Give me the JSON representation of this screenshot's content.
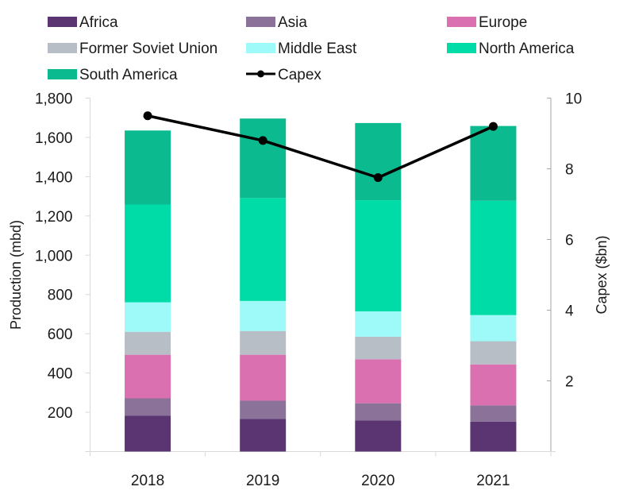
{
  "chart_data": {
    "type": "bar",
    "stacked": true,
    "title": "",
    "xlabel": "",
    "ylabel": "Production (mbd)",
    "y2label": "Capex ($bn)",
    "categories": [
      "2018",
      "2019",
      "2020",
      "2021"
    ],
    "ylim": [
      0,
      1800
    ],
    "yticks": [
      200,
      400,
      600,
      800,
      1000,
      1200,
      1400,
      1600,
      1800
    ],
    "ytick_labels": [
      "200",
      "400",
      "600",
      "800",
      "1,000",
      "1,200",
      "1,400",
      "1,600",
      "1,800"
    ],
    "y2lim": [
      0,
      10
    ],
    "y2ticks": [
      2,
      4,
      6,
      8,
      10
    ],
    "y2tick_labels": [
      "2",
      "4",
      "6",
      "8",
      "10"
    ],
    "grid": false,
    "legend_position": "top",
    "series": [
      {
        "name": "Africa",
        "color": "#5b3472",
        "values": [
          182,
          167,
          158,
          152
        ]
      },
      {
        "name": "Asia",
        "color": "#8b7299",
        "values": [
          89,
          92,
          88,
          83
        ]
      },
      {
        "name": "Europe",
        "color": "#da70b0",
        "values": [
          222,
          234,
          224,
          209
        ]
      },
      {
        "name": "Former Soviet Union",
        "color": "#b8bec6",
        "values": [
          117,
          121,
          115,
          118
        ]
      },
      {
        "name": "Middle East",
        "color": "#9efaf9",
        "values": [
          150,
          153,
          129,
          133
        ]
      },
      {
        "name": "North America",
        "color": "#00dca8",
        "values": [
          498,
          524,
          566,
          582
        ]
      },
      {
        "name": "South America",
        "color": "#0bba8f",
        "values": [
          377,
          405,
          393,
          381
        ]
      }
    ],
    "line_series": {
      "name": "Capex",
      "axis": "secondary",
      "color": "#000000",
      "values": [
        9.5,
        8.8,
        7.75,
        9.2
      ]
    }
  },
  "legend": [
    {
      "label": "Africa",
      "kind": "swatch",
      "color": "#5b3472"
    },
    {
      "label": "Asia",
      "kind": "swatch",
      "color": "#8b7299"
    },
    {
      "label": "Europe",
      "kind": "swatch",
      "color": "#da70b0"
    },
    {
      "label": "Former Soviet Union",
      "kind": "swatch",
      "color": "#b8bec6"
    },
    {
      "label": "Middle East",
      "kind": "swatch",
      "color": "#9efaf9"
    },
    {
      "label": "North America",
      "kind": "swatch",
      "color": "#00dca8"
    },
    {
      "label": "South America",
      "kind": "swatch",
      "color": "#0bba8f"
    },
    {
      "label": "Capex",
      "kind": "line-marker",
      "color": "#000000"
    }
  ]
}
